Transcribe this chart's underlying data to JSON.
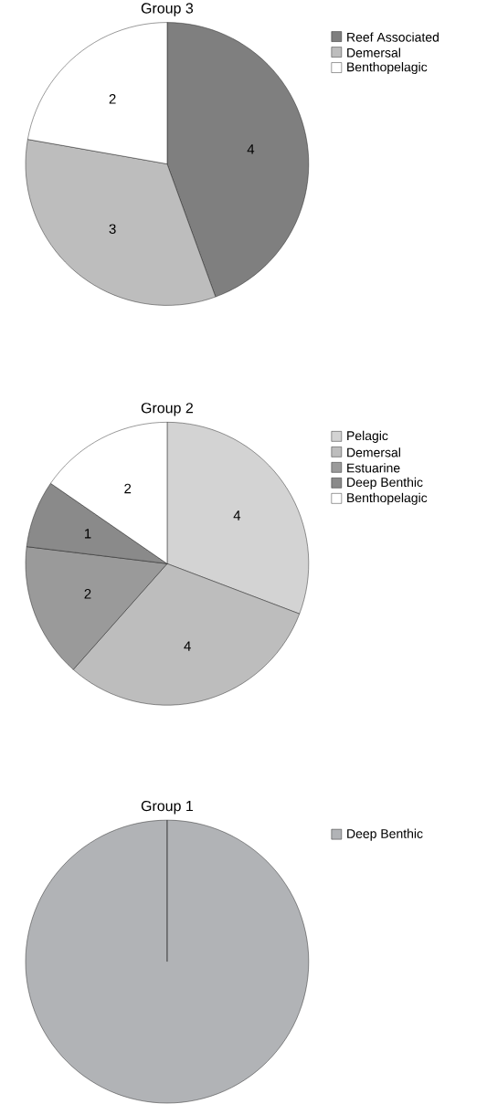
{
  "chart_data": [
    {
      "type": "pie",
      "title": "Group 3",
      "categories": [
        "Reef Associated",
        "Demersal",
        "Benthopelagic"
      ],
      "values": [
        4,
        3,
        2
      ],
      "colors": [
        "#7f7f7f",
        "#bdbdbd",
        "#ffffff"
      ],
      "data_labels": true,
      "legend": "top right"
    },
    {
      "type": "pie",
      "title": "Group 2",
      "categories": [
        "Pelagic",
        "Demersal",
        "Estuarine",
        "Deep Benthic",
        "Benthopelagic"
      ],
      "values": [
        4,
        4,
        2,
        1,
        2
      ],
      "colors": [
        "#d3d3d3",
        "#bdbdbd",
        "#9a9a9a",
        "#8a8a8a",
        "#ffffff"
      ],
      "data_labels": true,
      "legend": "top right"
    },
    {
      "type": "pie",
      "title": "Group 1",
      "categories": [
        "Deep Benthic"
      ],
      "values": [
        100
      ],
      "colors": [
        "#b1b3b6"
      ],
      "legend": "top right"
    }
  ]
}
